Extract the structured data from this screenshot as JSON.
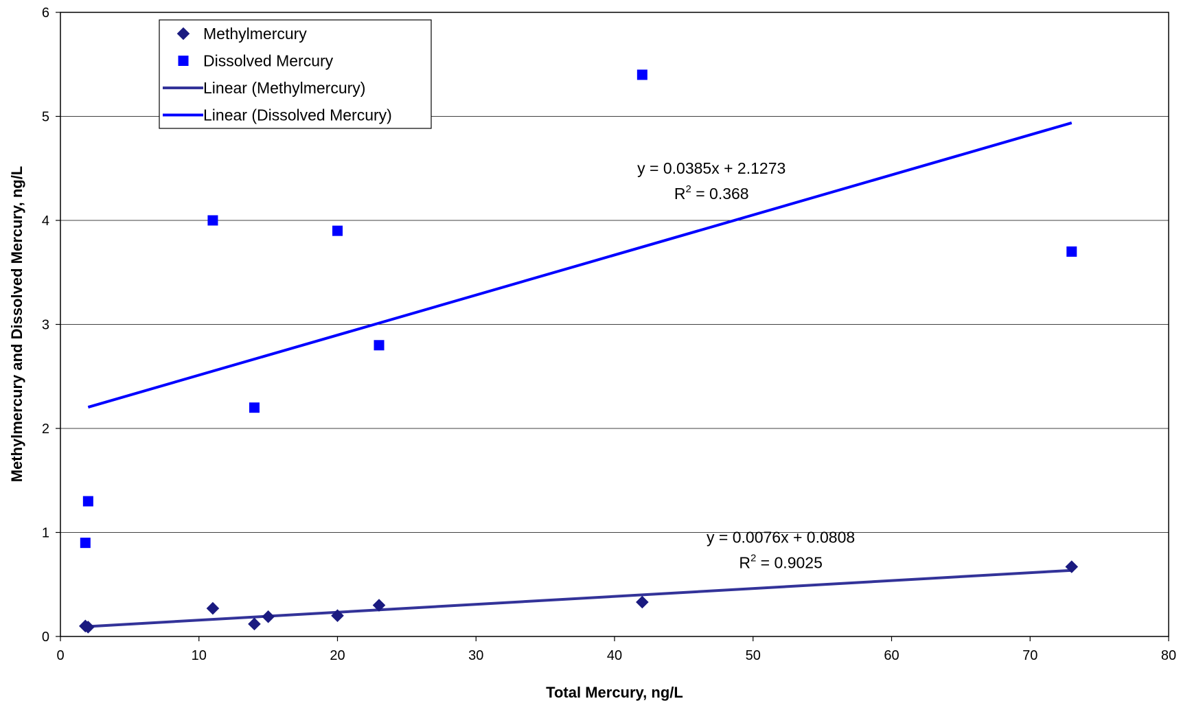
{
  "chart_data": {
    "type": "scatter",
    "xlabel": "Total Mercury, ng/L",
    "ylabel": "Methylmercury and Dissolved Mercury, ng/L",
    "xlim": [
      0,
      80
    ],
    "ylim": [
      0,
      6
    ],
    "xticks": [
      0,
      10,
      20,
      30,
      40,
      50,
      60,
      70,
      80
    ],
    "yticks": [
      0,
      1,
      2,
      3,
      4,
      5,
      6
    ],
    "grid": "horizontal",
    "legend_position": "top-left",
    "series": [
      {
        "name": "Methylmercury",
        "marker": "diamond",
        "color": "#1a1a80",
        "points": [
          [
            1.8,
            0.1
          ],
          [
            2.0,
            0.09
          ],
          [
            11,
            0.27
          ],
          [
            14,
            0.12
          ],
          [
            15,
            0.19
          ],
          [
            20,
            0.2
          ],
          [
            23,
            0.3
          ],
          [
            42,
            0.33
          ],
          [
            73,
            0.67
          ]
        ]
      },
      {
        "name": "Dissolved Mercury",
        "marker": "square",
        "color": "#0000ff",
        "points": [
          [
            1.8,
            0.9
          ],
          [
            2.0,
            1.3
          ],
          [
            11,
            4.0
          ],
          [
            14,
            2.2
          ],
          [
            20,
            3.9
          ],
          [
            23,
            2.8
          ],
          [
            42,
            5.4
          ],
          [
            73,
            3.7
          ]
        ]
      }
    ],
    "trendlines": [
      {
        "name": "Linear (Methylmercury)",
        "color": "#333399",
        "slope": 0.0076,
        "intercept": 0.0808,
        "x_range": [
          2,
          73
        ],
        "equation": "y = 0.0076x + 0.0808",
        "r2_label": "R",
        "r2_exp": "2",
        "r2_value": " = 0.9025",
        "label_anchor": [
          52,
          0.9
        ]
      },
      {
        "name": "Linear (Dissolved Mercury)",
        "color": "#0000ff",
        "slope": 0.0385,
        "intercept": 2.1273,
        "x_range": [
          2,
          73
        ],
        "equation": "y = 0.0385x + 2.1273",
        "r2_label": "R",
        "r2_exp": "2",
        "r2_value": " = 0.368",
        "label_anchor": [
          47,
          4.45
        ]
      }
    ]
  }
}
